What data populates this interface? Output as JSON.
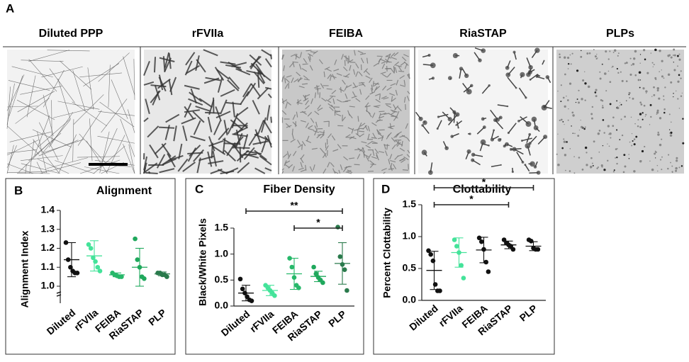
{
  "panel_a": {
    "label": "A",
    "titles": [
      "Diluted PPP",
      "rFVIIa",
      "FEIBA",
      "RiaSTAP",
      "PLPs"
    ]
  },
  "chart_data": [
    {
      "type": "scatter",
      "panel_label": "B",
      "title": "Alignment",
      "y_label": "Alignment Index",
      "categories": [
        "Diluted",
        "rFVIIa",
        "FEIBA",
        "RiaSTAP",
        "PLP"
      ],
      "colors": [
        "#111111",
        "#44e39a",
        "#27b86a",
        "#1fa85c",
        "#2a7a4c"
      ],
      "points": [
        [
          1.23,
          1.14,
          1.1,
          1.08,
          1.07,
          1.07
        ],
        [
          1.22,
          1.2,
          1.15,
          1.13,
          1.1,
          1.08
        ],
        [
          1.07,
          1.06,
          1.055,
          1.05,
          1.05
        ],
        [
          1.25,
          1.14,
          1.1,
          1.05,
          1.04
        ],
        [
          1.07,
          1.07,
          1.06,
          1.06,
          1.05
        ]
      ],
      "means": [
        1.14,
        1.16,
        1.06,
        1.1,
        1.065
      ],
      "sd": [
        0.09,
        0.08,
        0.01,
        0.1,
        0.01
      ],
      "ylim": [
        1,
        1.4
      ],
      "yticks": [
        {
          "value": 1,
          "label": "1.0"
        },
        1.1,
        1.2,
        1.3,
        1.4
      ],
      "annotations": []
    },
    {
      "type": "scatter",
      "panel_label": "C",
      "title": "Fiber Density",
      "y_label": "Black/White Pixels",
      "categories": [
        "Diluted",
        "rFVIIa",
        "FEIBA",
        "RiaSTAP",
        "PLP"
      ],
      "colors": [
        "#111111",
        "#44e39a",
        "#27b86a",
        "#1fa85c",
        "#2a7a4c"
      ],
      "points": [
        [
          0.52,
          0.33,
          0.25,
          0.18,
          0.12,
          0.1
        ],
        [
          0.4,
          0.35,
          0.3,
          0.25,
          0.2
        ],
        [
          0.92,
          0.75,
          0.55,
          0.4,
          0.35
        ],
        [
          0.75,
          0.62,
          0.55,
          0.5,
          0.45
        ],
        [
          1.52,
          0.95,
          0.8,
          0.7,
          0.3
        ]
      ],
      "means": [
        0.25,
        0.3,
        0.62,
        0.57,
        0.82
      ],
      "sd": [
        0.15,
        0.1,
        0.3,
        0.1,
        0.4
      ],
      "ylim": [
        0,
        1.5
      ],
      "yticks": [
        {
          "value": 0,
          "label": "0.0"
        },
        0.5,
        {
          "value": 1,
          "label": "1.0"
        },
        1.5
      ],
      "annotations": [
        {
          "text": "**",
          "from": "Diluted",
          "to": "PLP"
        },
        {
          "text": "*",
          "from": "FEIBA",
          "to": "PLP"
        }
      ]
    },
    {
      "type": "scatter",
      "panel_label": "D",
      "title": "Clottability",
      "y_label": "Percent Clottability",
      "categories": [
        "Diluted",
        "rFVIIa",
        "FEIBA",
        "RiaSTAP",
        "PLP"
      ],
      "colors": [
        "#111111",
        "#44e39a",
        "#111111",
        "#111111",
        "#111111"
      ],
      "points": [
        [
          0.78,
          0.72,
          0.62,
          0.25,
          0.15,
          0.15
        ],
        [
          0.95,
          0.85,
          0.75,
          0.55,
          0.35
        ],
        [
          0.98,
          0.92,
          0.8,
          0.6,
          0.45
        ],
        [
          0.95,
          0.9,
          0.87,
          0.85,
          0.8
        ],
        [
          0.95,
          0.93,
          0.82,
          0.8,
          0.8
        ]
      ],
      "means": [
        0.47,
        0.75,
        0.79,
        0.87,
        0.85
      ],
      "sd": [
        0.3,
        0.23,
        0.2,
        0.06,
        0.07
      ],
      "ylim": [
        0,
        1.5
      ],
      "yticks": [
        {
          "value": 0,
          "label": "0.0"
        },
        0.5,
        {
          "value": 1,
          "label": "1.0"
        },
        1.5
      ],
      "annotations": [
        {
          "text": "*",
          "from": "Diluted",
          "to": "PLP"
        },
        {
          "text": "*",
          "from": "Diluted",
          "to": "RiaSTAP"
        }
      ]
    }
  ]
}
